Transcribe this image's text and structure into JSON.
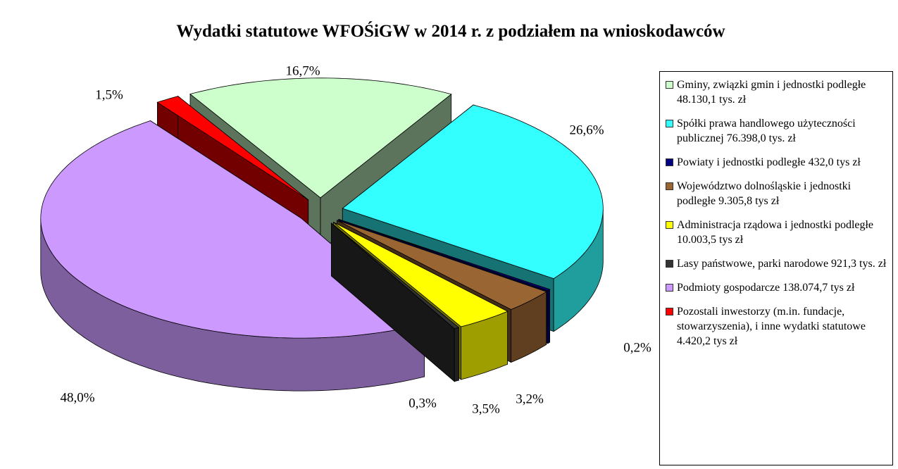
{
  "chart_data": {
    "type": "pie",
    "title": "Wydatki statutowe WFOŚiGW w 2014 r. z podziałem na wnioskodawców",
    "categories": [
      "Gminy, związki gmin i jednostki podległe 48.130,1 tys. zł",
      "Spółki prawa handlowego użyteczności publicznej 76.398,0 tys. zł",
      "Powiaty i jednostki podległe 432,0 tys zł",
      "Województwo dolnośląskie i jednostki podległe 9.305,8 tys zł",
      "Administracja rządowa i jednostki podległe 10.003,5 tys zł",
      "Lasy państwowe, parki narodowe 921,3 tys. zł",
      "Podmioty gospodarcze 138.074,7 tys zł",
      "Pozostali inwestorzy (m.in. fundacje, stowarzyszenia), i inne wydatki statutowe 4.420,2 tys zł"
    ],
    "values": [
      16.7,
      26.6,
      0.2,
      3.2,
      3.5,
      0.3,
      48.0,
      1.5
    ],
    "value_labels": [
      "16,7%",
      "26,6%",
      "0,2%",
      "3,2%",
      "3,5%",
      "0,3%",
      "48,0%",
      "1,5%"
    ],
    "colors": [
      "#ccffcc",
      "#33ffff",
      "#000080",
      "#996633",
      "#ffff00",
      "#333333",
      "#cc99ff",
      "#ff0000"
    ],
    "legend": "right"
  }
}
